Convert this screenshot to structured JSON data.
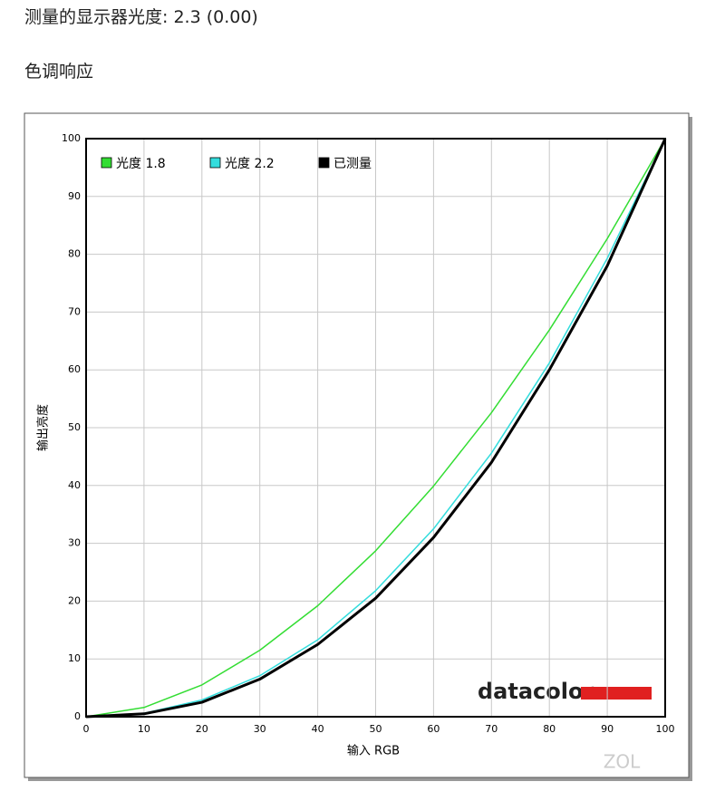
{
  "header": {
    "gamma_line": "测量的显示器光度:  2.3 (0.00)",
    "section": "色调响应"
  },
  "chart_data": {
    "type": "line",
    "x_label": "输入 RGB",
    "y_label": "输出亮度",
    "x": [
      0,
      10,
      20,
      30,
      40,
      50,
      60,
      70,
      80,
      90,
      100
    ],
    "series": [
      {
        "name": "光度 1.8",
        "color": "#33dd33",
        "values": [
          0,
          1.6,
          5.5,
          11.5,
          19.2,
          28.7,
          39.9,
          52.6,
          66.9,
          82.7,
          100
        ]
      },
      {
        "name": "光度 2.2",
        "color": "#33dddd",
        "values": [
          0,
          0.6,
          2.9,
          7.1,
          13.3,
          21.8,
          32.5,
          45.6,
          61.2,
          79.3,
          100
        ]
      },
      {
        "name": "已测量",
        "color": "#000000",
        "values": [
          0,
          0.5,
          2.5,
          6.5,
          12.5,
          20.5,
          31,
          44,
          60,
          78,
          100
        ]
      }
    ],
    "xlim": [
      0,
      100
    ],
    "ylim": [
      0,
      100
    ],
    "xticks": [
      0,
      10,
      20,
      30,
      40,
      50,
      60,
      70,
      80,
      90,
      100
    ],
    "yticks": [
      0,
      10,
      20,
      30,
      40,
      50,
      60,
      70,
      80,
      90,
      100
    ],
    "grid": true,
    "legend": "top-left",
    "logo": "datacolor",
    "watermark": "ZOL"
  }
}
